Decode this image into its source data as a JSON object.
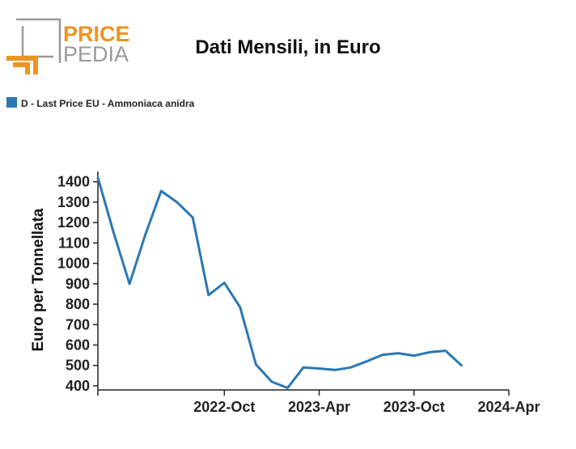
{
  "logo": {
    "line1": "PRICE",
    "line2": "PEDIA",
    "accent_color": "#f0931e",
    "gray_color": "#9a9a9a"
  },
  "chart_data": {
    "type": "line",
    "title": "Dati Mensili, in Euro",
    "xlabel": "",
    "ylabel": "Euro per Tonnellata",
    "ylim": [
      380,
      1450
    ],
    "yticks": [
      400,
      500,
      600,
      700,
      800,
      900,
      1000,
      1100,
      1200,
      1300,
      1400
    ],
    "x_range": [
      "2022-02",
      "2024-04"
    ],
    "xticks": [
      {
        "x": "2022-10",
        "label": "2022-Oct"
      },
      {
        "x": "2023-04",
        "label": "2023-Apr"
      },
      {
        "x": "2023-10",
        "label": "2023-Oct"
      },
      {
        "x": "2024-04",
        "label": "2024-Apr"
      }
    ],
    "legend": "top-left",
    "grid": false,
    "series": [
      {
        "name": "D - Last Price EU - Ammoniaca anidra",
        "color": "#2a78b4",
        "points": [
          {
            "x": "2022-02",
            "y": 1420
          },
          {
            "x": "2022-03",
            "y": 1150
          },
          {
            "x": "2022-04",
            "y": 900
          },
          {
            "x": "2022-05",
            "y": 1140
          },
          {
            "x": "2022-06",
            "y": 1355
          },
          {
            "x": "2022-07",
            "y": 1300
          },
          {
            "x": "2022-08",
            "y": 1225
          },
          {
            "x": "2022-09",
            "y": 845
          },
          {
            "x": "2022-10",
            "y": 905
          },
          {
            "x": "2022-11",
            "y": 785
          },
          {
            "x": "2022-12",
            "y": 505
          },
          {
            "x": "2023-01",
            "y": 420
          },
          {
            "x": "2023-02",
            "y": 390
          },
          {
            "x": "2023-03",
            "y": 490
          },
          {
            "x": "2023-04",
            "y": 485
          },
          {
            "x": "2023-05",
            "y": 478
          },
          {
            "x": "2023-06",
            "y": 490
          },
          {
            "x": "2023-07",
            "y": 520
          },
          {
            "x": "2023-08",
            "y": 552
          },
          {
            "x": "2023-09",
            "y": 560
          },
          {
            "x": "2023-10",
            "y": 548
          },
          {
            "x": "2023-11",
            "y": 565
          },
          {
            "x": "2023-12",
            "y": 572
          },
          {
            "x": "2024-01",
            "y": 500
          }
        ]
      }
    ]
  }
}
